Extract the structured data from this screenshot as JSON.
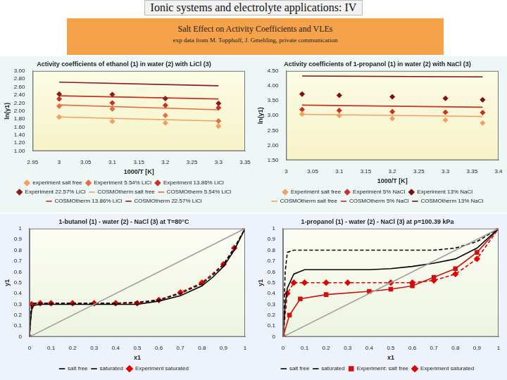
{
  "header": {
    "title": "Ionic systems and electrolyte applications: IV",
    "banner_title": "Salt Effect on Activity Coefficients and VLEs",
    "banner_note": "exp data from M. Topphoff, J. Gmehling, private communication"
  },
  "chart_data": [
    {
      "type": "scatter",
      "title": "Activity coefficients of ethanol (1) in water (2) with LiCl (3)",
      "x_label": "1000/T [K]",
      "y_label": "ln(γ1)",
      "xlim": [
        2.95,
        3.35
      ],
      "xticks": [
        2.95,
        3,
        3.05,
        3.1,
        3.15,
        3.2,
        3.25,
        3.3,
        3.35
      ],
      "ylim": [
        1,
        3
      ],
      "yticks": [
        {
          "value": 1,
          "label": "1.00"
        },
        {
          "value": 1.2,
          "label": "1.20"
        },
        {
          "value": 1.4,
          "label": "1.40"
        },
        {
          "value": 1.6,
          "label": "1.60"
        },
        {
          "value": 1.8,
          "label": "1.80"
        },
        {
          "value": 2,
          "label": "2.00"
        },
        {
          "value": 2.2,
          "label": "2.20"
        },
        {
          "value": 2.4,
          "label": "2.40"
        },
        {
          "value": 2.6,
          "label": "2.60"
        },
        {
          "value": 2.8,
          "label": "2.80"
        },
        {
          "value": 3,
          "label": "3.00"
        }
      ],
      "grid": false,
      "legend": "bottom",
      "series": [
        {
          "name": "experiment salt free",
          "color": "#f0a060",
          "marker": "diamond",
          "line_style": "none",
          "x": [
            3,
            3.1,
            3.2,
            3.3
          ],
          "values": [
            1.85,
            1.74,
            1.7,
            1.62
          ]
        },
        {
          "name": "Experiment 5.54% LiCl",
          "color": "#e07040",
          "marker": "diamond",
          "line_style": "none",
          "x": [
            3,
            3.1,
            3.2,
            3.3
          ],
          "values": [
            2.12,
            2.05,
            1.89,
            1.75
          ]
        },
        {
          "name": "Experiment 13.86% LiCl",
          "color": "#c83020",
          "marker": "diamond",
          "line_style": "none",
          "x": [
            3,
            3.1,
            3.2,
            3.3
          ],
          "values": [
            2.3,
            2.2,
            2.14,
            2.08
          ]
        },
        {
          "name": "Experiment 22.57% LiCl",
          "color": "#8b1a1a",
          "marker": "diamond",
          "line_style": "none",
          "x": [
            3,
            3.1,
            3.2,
            3.3
          ],
          "values": [
            2.42,
            2.41,
            2.31,
            2.19
          ]
        },
        {
          "name": "COSMOtherm salt free",
          "color": "#f0a060",
          "marker": "none",
          "line_style": "solid",
          "x": [
            3,
            3.3
          ],
          "values": [
            1.85,
            1.75
          ]
        },
        {
          "name": "COSMOtherm 5.54% LiCl",
          "color": "#e07040",
          "marker": "none",
          "line_style": "solid",
          "x": [
            3,
            3.3
          ],
          "values": [
            2.15,
            2.03
          ]
        },
        {
          "name": "COSMOtherm 13.86% LiCl",
          "color": "#c83020",
          "marker": "none",
          "line_style": "solid",
          "x": [
            3,
            3.3
          ],
          "values": [
            2.38,
            2.3
          ]
        },
        {
          "name": "COSMOtherm 22.57% LiCl",
          "color": "#8b1a1a",
          "marker": "none",
          "line_style": "solid",
          "x": [
            3,
            3.3
          ],
          "values": [
            2.72,
            2.63
          ]
        }
      ]
    },
    {
      "type": "scatter",
      "title": "Activity coefficients of 1-propanol (1) in water (2) with NaCl (3)",
      "x_label": "1000/T [K]",
      "y_label": "ln(γ1)",
      "xlim": [
        3,
        3.4
      ],
      "xticks": [
        3,
        3.05,
        3.1,
        3.15,
        3.2,
        3.25,
        3.3,
        3.35,
        3.4
      ],
      "ylim": [
        1.5,
        4.5
      ],
      "yticks": [
        {
          "value": 1.5,
          "label": "1.50"
        },
        {
          "value": 2,
          "label": "2.00"
        },
        {
          "value": 2.5,
          "label": "2.50"
        },
        {
          "value": 3,
          "label": "3.00"
        },
        {
          "value": 3.5,
          "label": "3.50"
        },
        {
          "value": 4,
          "label": "4.00"
        },
        {
          "value": 4.5,
          "label": "4.50"
        }
      ],
      "grid": false,
      "legend": "bottom",
      "series": [
        {
          "name": "Experiment salt free",
          "color": "#f0a060",
          "marker": "diamond",
          "line_style": "none",
          "x": [
            3.03,
            3.1,
            3.2,
            3.3,
            3.37
          ],
          "values": [
            3.05,
            3.0,
            2.9,
            2.85,
            2.75
          ]
        },
        {
          "name": "Experiment 5% NaCl",
          "color": "#c83020",
          "marker": "diamond",
          "line_style": "none",
          "x": [
            3.03,
            3.1,
            3.2,
            3.3,
            3.37
          ],
          "values": [
            3.2,
            3.17,
            3.13,
            3.11,
            3.1
          ]
        },
        {
          "name": "Experiment 13% NaCl",
          "color": "#801010",
          "marker": "diamond",
          "line_style": "none",
          "x": [
            3.03,
            3.1,
            3.2,
            3.3,
            3.37
          ],
          "values": [
            3.72,
            3.68,
            3.63,
            3.58,
            3.53
          ]
        },
        {
          "name": "COSMOtherm salt free",
          "color": "#f0a060",
          "marker": "none",
          "line_style": "solid",
          "x": [
            3.03,
            3.37
          ],
          "values": [
            3.04,
            2.97
          ]
        },
        {
          "name": "COSMOtherm 5% NaCl",
          "color": "#c83020",
          "marker": "none",
          "line_style": "solid",
          "x": [
            3.03,
            3.37
          ],
          "values": [
            3.35,
            3.28
          ]
        },
        {
          "name": "COSMOtherm 13% NaCl",
          "color": "#801010",
          "marker": "none",
          "line_style": "solid",
          "x": [
            3.03,
            3.37
          ],
          "values": [
            4.33,
            4.3
          ]
        }
      ]
    },
    {
      "type": "scatter",
      "title": "1-butanol (1) - water (2) - NaCl (3) at T=80°C",
      "x_label": "x1",
      "y_label": "y1",
      "xlim": [
        0,
        1
      ],
      "xticks": [
        0,
        0.1,
        0.2,
        0.3,
        0.4,
        0.5,
        0.6,
        0.7,
        0.8,
        0.9,
        1
      ],
      "ylim": [
        0,
        1
      ],
      "yticks": [
        0,
        0.1,
        0.2,
        0.3,
        0.4,
        0.5,
        0.6,
        0.7,
        0.8,
        0.9,
        1
      ],
      "grid": false,
      "legend": "bottom",
      "series": [
        {
          "color": "#a0a0a0",
          "marker": "none",
          "line_style": "solid",
          "x": [
            0,
            1
          ],
          "values": [
            0,
            1
          ]
        },
        {
          "name": "salt free",
          "color": "#000000",
          "marker": "none",
          "line_style": "solid",
          "x": [
            0,
            0.005,
            0.01,
            0.02,
            0.05,
            0.1,
            0.2,
            0.3,
            0.4,
            0.5,
            0.6,
            0.7,
            0.8,
            0.85,
            0.9,
            0.95,
            1
          ],
          "values": [
            0,
            0.15,
            0.25,
            0.29,
            0.3,
            0.3,
            0.3,
            0.3,
            0.3,
            0.3,
            0.33,
            0.38,
            0.47,
            0.55,
            0.65,
            0.8,
            1
          ]
        },
        {
          "name": "saturated",
          "color": "#000000",
          "marker": "none",
          "line_style": "dashed",
          "x": [
            0,
            0.005,
            0.01,
            0.02,
            0.05,
            0.1,
            0.2,
            0.3,
            0.4,
            0.5,
            0.6,
            0.7,
            0.8,
            0.85,
            0.9,
            0.95,
            1
          ],
          "values": [
            0,
            0.2,
            0.29,
            0.31,
            0.31,
            0.31,
            0.31,
            0.31,
            0.31,
            0.32,
            0.34,
            0.4,
            0.49,
            0.57,
            0.67,
            0.82,
            1
          ]
        },
        {
          "name": "Experiment saturated",
          "color": "#e00000",
          "marker": "diamond",
          "line_style": "dashed",
          "x": [
            0,
            0.01,
            0.05,
            0.1,
            0.2,
            0.3,
            0.4,
            0.5,
            0.6,
            0.7,
            0.8,
            0.9,
            0.95,
            1
          ],
          "values": [
            0,
            0.3,
            0.31,
            0.31,
            0.31,
            0.31,
            0.31,
            0.31,
            0.34,
            0.41,
            0.5,
            0.67,
            0.82,
            1
          ]
        }
      ]
    },
    {
      "type": "scatter",
      "title": "1-propanol (1) - water (2) - NaCl (3) at p=100.39 kPa",
      "x_label": "x1",
      "y_label": "y1",
      "xlim": [
        0,
        1
      ],
      "xticks": [
        0,
        0.1,
        0.2,
        0.3,
        0.4,
        0.5,
        0.6,
        0.7,
        0.8,
        0.9,
        1
      ],
      "ylim": [
        0,
        1
      ],
      "yticks": [
        0,
        0.1,
        0.2,
        0.3,
        0.4,
        0.5,
        0.6,
        0.7,
        0.8,
        0.9,
        1
      ],
      "grid": false,
      "legend": "bottom",
      "series": [
        {
          "color": "#a0a0a0",
          "marker": "none",
          "line_style": "solid",
          "x": [
            0,
            1
          ],
          "values": [
            0,
            1
          ]
        },
        {
          "name": "salt free",
          "color": "#000000",
          "marker": "none",
          "line_style": "solid",
          "x": [
            0,
            0.01,
            0.02,
            0.05,
            0.1,
            0.2,
            0.3,
            0.4,
            0.5,
            0.6,
            0.7,
            0.8,
            0.9,
            1
          ],
          "values": [
            0,
            0.3,
            0.45,
            0.58,
            0.62,
            0.62,
            0.62,
            0.62,
            0.63,
            0.65,
            0.68,
            0.72,
            0.82,
            1
          ]
        },
        {
          "name": "saturated",
          "color": "#000000",
          "marker": "none",
          "line_style": "dashed",
          "x": [
            0,
            0.01,
            0.02,
            0.05,
            0.1,
            0.3,
            0.5,
            0.7,
            0.8,
            0.9,
            1
          ],
          "values": [
            0,
            0.6,
            0.78,
            0.8,
            0.8,
            0.8,
            0.8,
            0.8,
            0.82,
            0.88,
            1
          ]
        },
        {
          "name": "Experiment: salt free",
          "color": "#d01010",
          "marker": "square",
          "line_style": "solid",
          "x": [
            0,
            0.03,
            0.08,
            0.2,
            0.4,
            0.5,
            0.6,
            0.7,
            0.8,
            0.9,
            1
          ],
          "values": [
            0,
            0.2,
            0.35,
            0.39,
            0.42,
            0.44,
            0.47,
            0.55,
            0.63,
            0.78,
            1
          ]
        },
        {
          "name": "Experiment saturated",
          "color": "#e00000",
          "marker": "diamond",
          "line_style": "dashed",
          "x": [
            0,
            0.02,
            0.05,
            0.1,
            0.2,
            0.3,
            0.5,
            0.6,
            0.7,
            0.8,
            0.9,
            1
          ],
          "values": [
            0,
            0.4,
            0.5,
            0.5,
            0.5,
            0.5,
            0.5,
            0.5,
            0.52,
            0.58,
            0.72,
            1
          ]
        }
      ]
    }
  ]
}
